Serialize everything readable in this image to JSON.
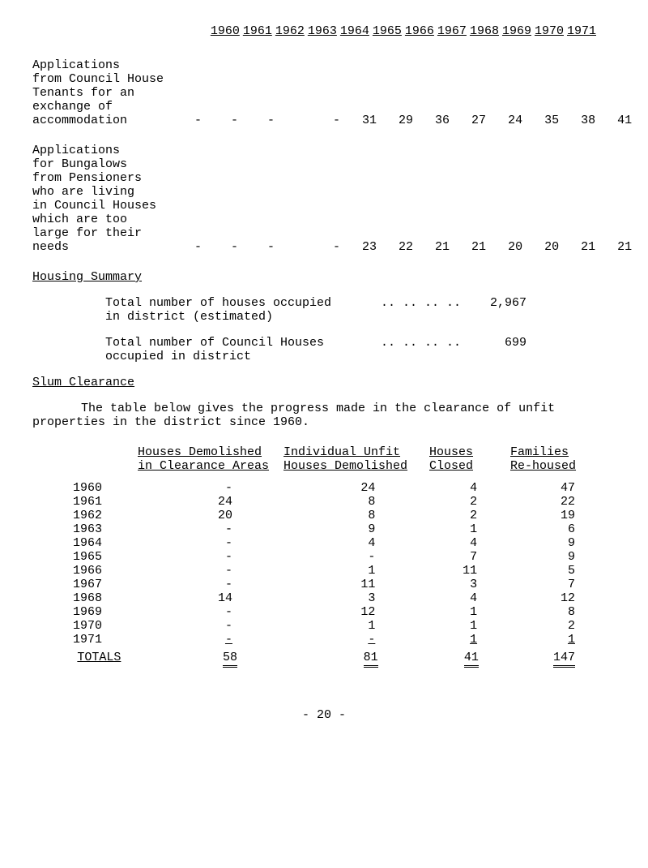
{
  "years": [
    "1960",
    "1961",
    "1962",
    "1963",
    "1964",
    "1965",
    "1966",
    "1967",
    "1968",
    "1969",
    "1970",
    "1971"
  ],
  "row1": {
    "label": "Applications\nfrom Council House\nTenants for an\nexchange of\naccommodation",
    "values": "-    -    -        -   31   29   36   27   24   35   38   41"
  },
  "row2": {
    "label": "Applications\nfor Bungalows\nfrom Pensioners\nwho are living\nin Council Houses\nwhich are too\nlarge for their\nneeds",
    "values": "-    -    -        -   23   22   21   21   20   20   21   21"
  },
  "housing_summary_title": "Housing Summary",
  "summary1": {
    "label": "Total number of houses occupied\nin district (estimated)",
    "dots": "..  ..  ..  ..",
    "value": "2,967"
  },
  "summary2": {
    "label": "Total number of Council Houses\noccupied in district",
    "dots": "..  ..  ..  ..",
    "value": "699"
  },
  "slum_title": "Slum Clearance",
  "slum_para": "The table below gives the progress made in the clearance of unfit properties in the district since 1960.",
  "t2_headers": {
    "a": "Houses Demolished\nin Clearance Areas",
    "b": "Individual Unfit\nHouses Demolished",
    "c": "Houses\nClosed",
    "d": "Families\nRe-housed"
  },
  "t2_rows": [
    {
      "year": "1960",
      "a": "-",
      "b": "24",
      "c": "4",
      "d": "47"
    },
    {
      "year": "1961",
      "a": "24",
      "b": "8",
      "c": "2",
      "d": "22"
    },
    {
      "year": "1962",
      "a": "20",
      "b": "8",
      "c": "2",
      "d": "19"
    },
    {
      "year": "1963",
      "a": "-",
      "b": "9",
      "c": "1",
      "d": "6"
    },
    {
      "year": "1964",
      "a": "-",
      "b": "4",
      "c": "4",
      "d": "9"
    },
    {
      "year": "1965",
      "a": "-",
      "b": "-",
      "c": "7",
      "d": "9"
    },
    {
      "year": "1966",
      "a": "-",
      "b": "1",
      "c": "11",
      "d": "5"
    },
    {
      "year": "1967",
      "a": "-",
      "b": "11",
      "c": "3",
      "d": "7"
    },
    {
      "year": "1968",
      "a": "14",
      "b": "3",
      "c": "4",
      "d": "12"
    },
    {
      "year": "1969",
      "a": "-",
      "b": "12",
      "c": "1",
      "d": "8"
    },
    {
      "year": "1970",
      "a": "-",
      "b": "1",
      "c": "1",
      "d": "2"
    },
    {
      "year": "1971",
      "a": "-",
      "b": "-",
      "c": "1",
      "d": "1"
    }
  ],
  "totals": {
    "label": "TOTALS",
    "a": "58",
    "b": "81",
    "c": "41",
    "d": "147"
  },
  "page": "- 20 -"
}
